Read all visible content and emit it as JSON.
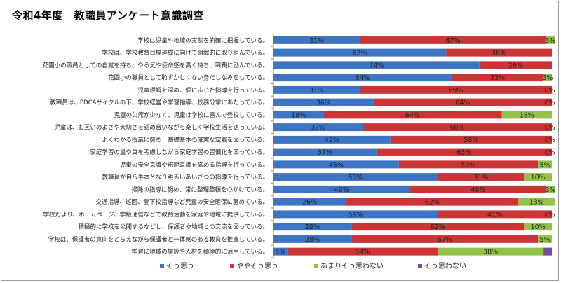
{
  "title": "令和4年度　教職員アンケート意識調査",
  "colors": {
    "s1": "#3d74c4",
    "s2": "#cc3535",
    "s3": "#92c24c",
    "s4": "#7a4ca0",
    "grid": "#8a8a8a"
  },
  "chart_data": {
    "type": "bar",
    "orientation": "horizontal",
    "stacked": true,
    "percent": true,
    "xlim": [
      0,
      100
    ],
    "legend_position": "bottom",
    "categories": [
      "学校は児童や地域の実態を的確に把握している。",
      "学校は、学校教育目標達成に向けて組織的に取り組んでいる。",
      "花園小の職員としての自覚を持ち、やる気や使命感を高く持ち、職務に励んでいる。",
      "花園小の職員として恥ずかしくない身だしなみをしている。",
      "児童理解を深め、個に応じた指導を行っている。",
      "教職員は、PDCAサイクルの下、学校経営や学習指導、校務分掌にあたっている。",
      "児童の欠席が少なく、児童は学校に喜んで登校している。",
      "児童は、お互いのよさや大切さを認め合いながら楽しく学校生活を送っている。",
      "よくわかる授業に努め、基礎基本の確実な定着を図っている。",
      "家庭学習の量や質を考慮しながら家庭学習の習慣化を図っている。",
      "児童の安全意識や規範意識を高める指導を行っている。",
      "教職員が自ら手本となり明るいあいさつの指導を行っている。",
      "掃除の指導に努め、常に整理整頓を心がけている。",
      "交通指導、巡回、登下校指導など児童の安全確保に努めている。",
      "学校だより、ホームページ、学級通信などで教育活動を家庭や地域に提供している。",
      "積極的に学校を公開するなどし、保護者や地域との交流を図っている。",
      "学校は、保護者の意向をとらえながら保護者と一体感のある教育を推進している。",
      "学習に地域の施設や人材を積極的に活用している。"
    ],
    "series": [
      {
        "name": "そう思う",
        "values": [
          31,
          62,
          74,
          64,
          31,
          36,
          18,
          32,
          42,
          37,
          45,
          59,
          49,
          26,
          59,
          28,
          28,
          5
        ]
      },
      {
        "name": "ややそう思う",
        "values": [
          67,
          38,
          26,
          33,
          69,
          64,
          64,
          68,
          58,
          63,
          50,
          31,
          49,
          62,
          41,
          62,
          67,
          54
        ]
      },
      {
        "name": "あまりそう思わない",
        "values": [
          3,
          0,
          0,
          3,
          0,
          0,
          18,
          0,
          0,
          0,
          5,
          10,
          3,
          13,
          0,
          10,
          5,
          38
        ]
      },
      {
        "name": "そう思わない",
        "values": [
          0,
          0,
          0,
          0,
          0,
          0,
          0,
          0,
          0,
          0,
          0,
          0,
          0,
          0,
          0,
          0,
          0,
          3
        ]
      }
    ],
    "data_labels": [
      [
        "31%",
        "67%",
        "3%",
        ""
      ],
      [
        "62%",
        "38%",
        "",
        ""
      ],
      [
        "74%",
        "26%",
        "",
        ""
      ],
      [
        "64%",
        "33%",
        "3%",
        ""
      ],
      [
        "31%",
        "69%",
        "0%",
        ""
      ],
      [
        "36%",
        "64%",
        "0%",
        ""
      ],
      [
        "18%",
        "64%",
        "18%",
        ""
      ],
      [
        "32%",
        "68%",
        "0%",
        ""
      ],
      [
        "42%",
        "58%",
        "0%",
        ""
      ],
      [
        "37%",
        "63%",
        "0%",
        ""
      ],
      [
        "45%",
        "50%",
        "5%",
        ""
      ],
      [
        "59%",
        "31%",
        "10%",
        ""
      ],
      [
        "49%",
        "49%",
        "3%",
        ""
      ],
      [
        "26%",
        "62%",
        "13%",
        ""
      ],
      [
        "59%",
        "41%",
        "0%",
        ""
      ],
      [
        "28%",
        "62%",
        "10%",
        ""
      ],
      [
        "28%",
        "67%",
        "5%",
        ""
      ],
      [
        "5%",
        "54%",
        "38%",
        ""
      ]
    ]
  }
}
